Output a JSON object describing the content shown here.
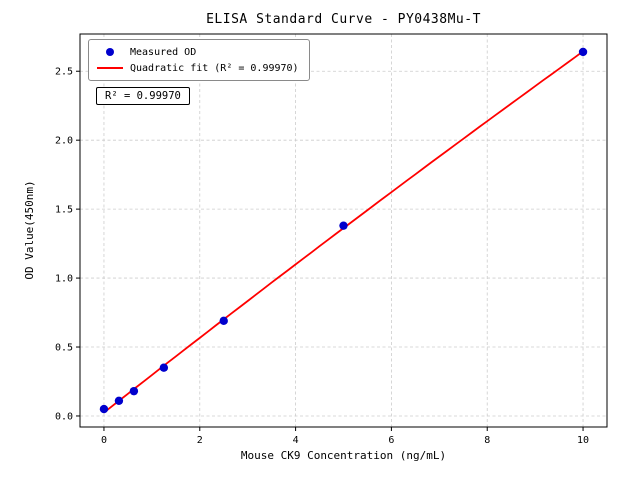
{
  "chart_data": {
    "type": "scatter",
    "title": "ELISA Standard Curve - PY0438Mu-T",
    "xlabel": "Mouse CK9 Concentration (ng/mL)",
    "ylabel": "OD Value(450nm)",
    "xlim": [
      -0.5,
      10.5
    ],
    "ylim": [
      -0.08,
      2.77
    ],
    "xticks": [
      0,
      2,
      4,
      6,
      8,
      10
    ],
    "yticks": [
      0,
      0.5,
      1,
      1.5,
      2,
      2.5
    ],
    "grid": true,
    "legend_position": "upper-left",
    "annotation": "R² = 0.99970",
    "colors": {
      "measured": "#0000cd",
      "fit": "#ff0000",
      "grid": "#cccccc",
      "frame": "#000000"
    },
    "series": [
      {
        "name": "Measured OD",
        "type": "scatter",
        "color": "#0000cd",
        "x": [
          0,
          0.3125,
          0.625,
          1.25,
          2.5,
          5,
          10
        ],
        "y": [
          0.05,
          0.11,
          0.18,
          0.35,
          0.69,
          1.38,
          2.64
        ]
      },
      {
        "name": "Quadratic fit (R² = 0.99970)",
        "type": "line",
        "color": "#ff0000",
        "fit": "quadratic",
        "r_squared": 0.9997
      }
    ]
  }
}
